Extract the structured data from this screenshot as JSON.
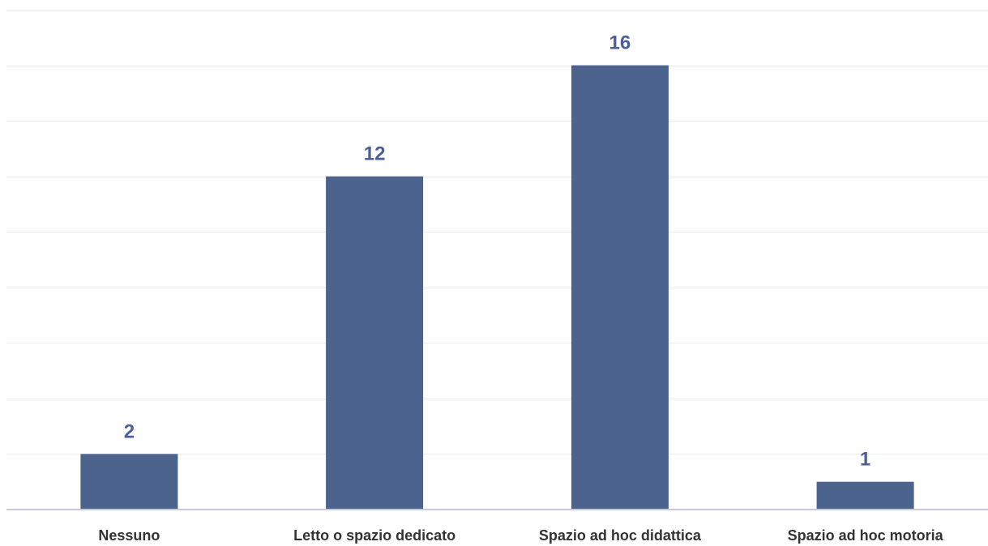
{
  "chart_data": {
    "type": "bar",
    "title": "",
    "xlabel": "",
    "ylabel": "",
    "categories": [
      "Nessuno",
      "Letto o spazio dedicato",
      "Spazio ad hoc didattica",
      "Spazio ad hoc motoria"
    ],
    "values": [
      2,
      12,
      16,
      1
    ],
    "data_labels": [
      "2",
      "12",
      "16",
      "1"
    ],
    "ylim": [
      0,
      18
    ],
    "grid_step": 2,
    "grid": true,
    "y_tick_labels_visible": false,
    "legend": "none"
  },
  "colors": {
    "bar": "#4b638d",
    "data_label": "#4b5f9a",
    "gridline": "#ececec",
    "baseline": "#c5c9dc"
  }
}
